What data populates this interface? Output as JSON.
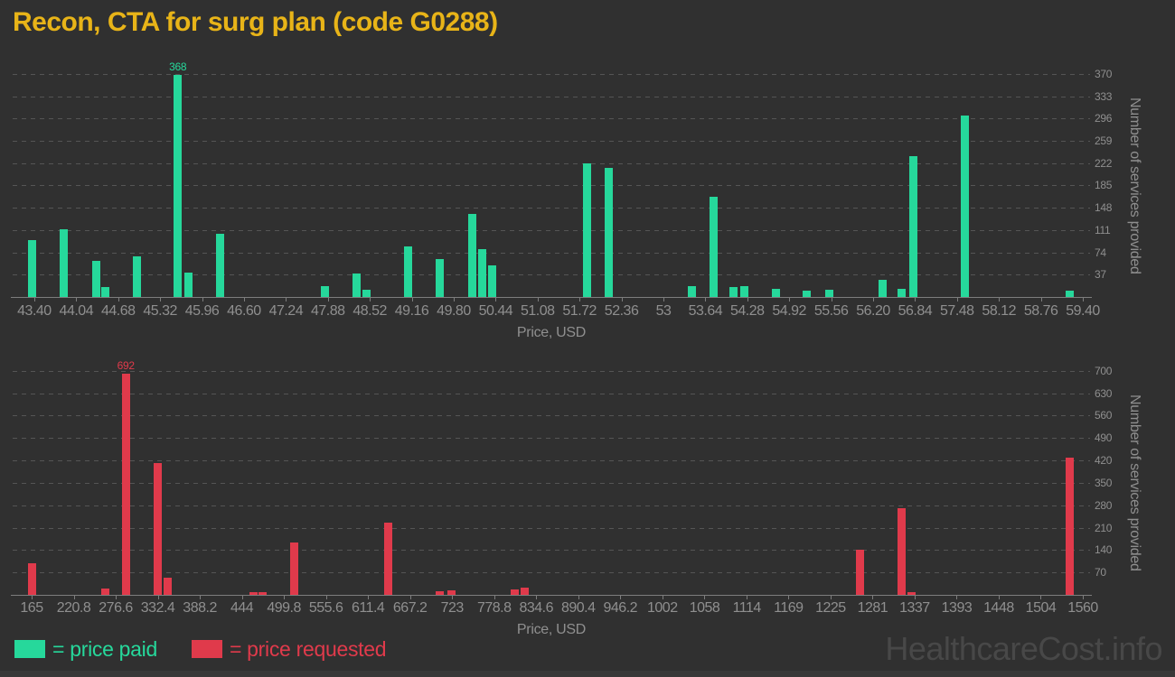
{
  "title": "Recon, CTA for surg plan (code G0288)",
  "watermark": "HealthcareCost.info",
  "legend": {
    "paid_label": "= price paid",
    "requested_label": "= price requested"
  },
  "colors": {
    "paid": "#26D89B",
    "requested": "#E03A4B",
    "title": "#E8B418",
    "axis_text": "#8F8F8F",
    "grid": "#555555",
    "axis_line": "#7D7D7D",
    "watermark": "#484848",
    "background": "#303030"
  },
  "chart_data": [
    {
      "type": "bar",
      "series_name": "price paid",
      "xlabel": "Price, USD",
      "ylabel": "Number of services provided",
      "bar_color": "#26D89B",
      "grid": true,
      "legend_position": "bottom",
      "xlim": [
        43.07,
        59.51
      ],
      "ylim": [
        0,
        383
      ],
      "x_ticks": [
        "43.40",
        "44.04",
        "44.68",
        "45.32",
        "45.96",
        "46.60",
        "47.24",
        "47.88",
        "48.52",
        "49.16",
        "49.80",
        "50.44",
        "51.08",
        "51.72",
        "52.36",
        "53",
        "53.64",
        "54.28",
        "54.92",
        "55.56",
        "56.20",
        "56.84",
        "57.48",
        "58.12",
        "58.76",
        "59.40"
      ],
      "x_tick_values": [
        43.4,
        44.04,
        44.68,
        45.32,
        45.96,
        46.6,
        47.24,
        47.88,
        48.52,
        49.16,
        49.8,
        50.44,
        51.08,
        51.72,
        52.36,
        53.0,
        53.64,
        54.28,
        54.92,
        55.56,
        56.2,
        56.84,
        57.48,
        58.12,
        58.76,
        59.4
      ],
      "y_ticks": [
        37,
        74,
        111,
        148,
        185,
        222,
        259,
        296,
        333,
        370
      ],
      "bars": [
        {
          "x": 43.37,
          "value": 95
        },
        {
          "x": 43.85,
          "value": 113
        },
        {
          "x": 44.34,
          "value": 60
        },
        {
          "x": 44.48,
          "value": 17
        },
        {
          "x": 44.97,
          "value": 67
        },
        {
          "x": 45.59,
          "value": 368,
          "label": "368"
        },
        {
          "x": 45.75,
          "value": 40
        },
        {
          "x": 46.24,
          "value": 105
        },
        {
          "x": 47.83,
          "value": 18
        },
        {
          "x": 48.32,
          "value": 39
        },
        {
          "x": 48.47,
          "value": 12
        },
        {
          "x": 49.11,
          "value": 84
        },
        {
          "x": 49.59,
          "value": 63
        },
        {
          "x": 50.08,
          "value": 138
        },
        {
          "x": 50.24,
          "value": 79
        },
        {
          "x": 50.39,
          "value": 53
        },
        {
          "x": 51.84,
          "value": 221
        },
        {
          "x": 52.16,
          "value": 214
        },
        {
          "x": 53.44,
          "value": 18
        },
        {
          "x": 53.77,
          "value": 166
        },
        {
          "x": 54.07,
          "value": 16
        },
        {
          "x": 54.24,
          "value": 18
        },
        {
          "x": 54.72,
          "value": 14
        },
        {
          "x": 55.19,
          "value": 10
        },
        {
          "x": 55.53,
          "value": 12
        },
        {
          "x": 56.34,
          "value": 29
        },
        {
          "x": 56.63,
          "value": 14
        },
        {
          "x": 56.81,
          "value": 233
        },
        {
          "x": 57.6,
          "value": 301
        },
        {
          "x": 59.2,
          "value": 10
        }
      ]
    },
    {
      "type": "bar",
      "series_name": "price requested",
      "xlabel": "Price, USD",
      "ylabel": "Number of services provided",
      "bar_color": "#E03A4B",
      "grid": true,
      "legend_position": "bottom",
      "xlim": [
        139.8,
        1569.6
      ],
      "ylim": [
        0,
        725
      ],
      "x_ticks": [
        "165",
        "220.8",
        "276.6",
        "332.4",
        "388.2",
        "444",
        "499.8",
        "555.6",
        "611.4",
        "667.2",
        "723",
        "778.8",
        "834.6",
        "890.4",
        "946.2",
        "1002",
        "1058",
        "1114",
        "1169",
        "1225",
        "1281",
        "1337",
        "1393",
        "1448",
        "1504",
        "1560"
      ],
      "x_tick_values": [
        165,
        220.8,
        276.6,
        332.4,
        388.2,
        444,
        499.8,
        555.6,
        611.4,
        667.2,
        723,
        778.8,
        834.6,
        890.4,
        946.2,
        1002,
        1058,
        1114,
        1169.4,
        1225.2,
        1281,
        1336.8,
        1392.6,
        1448.4,
        1504.2,
        1560
      ],
      "y_ticks": [
        70,
        140,
        210,
        280,
        350,
        420,
        490,
        560,
        630,
        700
      ],
      "bars": [
        {
          "x": 166,
          "value": 98
        },
        {
          "x": 263,
          "value": 20
        },
        {
          "x": 290,
          "value": 692,
          "label": "692"
        },
        {
          "x": 332,
          "value": 413
        },
        {
          "x": 346,
          "value": 53
        },
        {
          "x": 459,
          "value": 8
        },
        {
          "x": 472,
          "value": 9
        },
        {
          "x": 513,
          "value": 164
        },
        {
          "x": 638,
          "value": 227
        },
        {
          "x": 707,
          "value": 10
        },
        {
          "x": 722,
          "value": 13
        },
        {
          "x": 806,
          "value": 16
        },
        {
          "x": 819,
          "value": 23
        },
        {
          "x": 1264,
          "value": 140
        },
        {
          "x": 1320,
          "value": 270
        },
        {
          "x": 1333,
          "value": 9
        },
        {
          "x": 1543,
          "value": 430
        }
      ]
    }
  ]
}
